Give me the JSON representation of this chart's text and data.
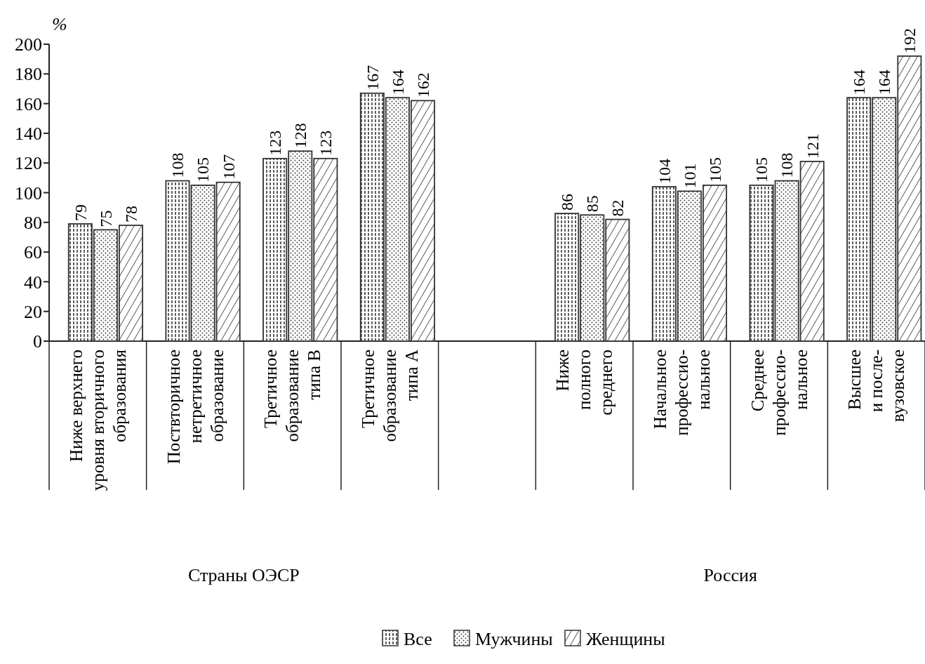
{
  "chart_data": {
    "type": "bar",
    "ylabel": "%",
    "categories": [
      "Ниже верхнего\nуровня вторичного\nобразования",
      "Поствторичное\nнетретичное\nобразование",
      "Третичное\nобразование\nтипа B",
      "Третичное\nобразование\nтипа A",
      null,
      "Ниже\nполного\nсреднего",
      "Начальное\nпрофессио-\nнальное",
      "Среднее\nпрофессио-\nнальное",
      "Высшее\nи после-\nвузовское"
    ],
    "series": [
      {
        "name": "Все",
        "color": "#333333",
        "values": [
          79,
          108,
          123,
          167,
          null,
          86,
          104,
          105,
          164
        ]
      },
      {
        "name": "Мужчины",
        "color": "#333333",
        "values": [
          75,
          105,
          128,
          164,
          null,
          85,
          101,
          108,
          164
        ]
      },
      {
        "name": "Женщины",
        "color": "#333333",
        "values": [
          78,
          107,
          123,
          162,
          null,
          82,
          105,
          121,
          192
        ]
      }
    ],
    "ylim": [
      0,
      200
    ],
    "yticks": [
      0,
      20,
      40,
      60,
      80,
      100,
      120,
      140,
      160,
      180,
      200
    ],
    "data_labels": true,
    "legend": "bottom",
    "annotations": [
      "Страны ОЭСР",
      "Россия"
    ]
  }
}
